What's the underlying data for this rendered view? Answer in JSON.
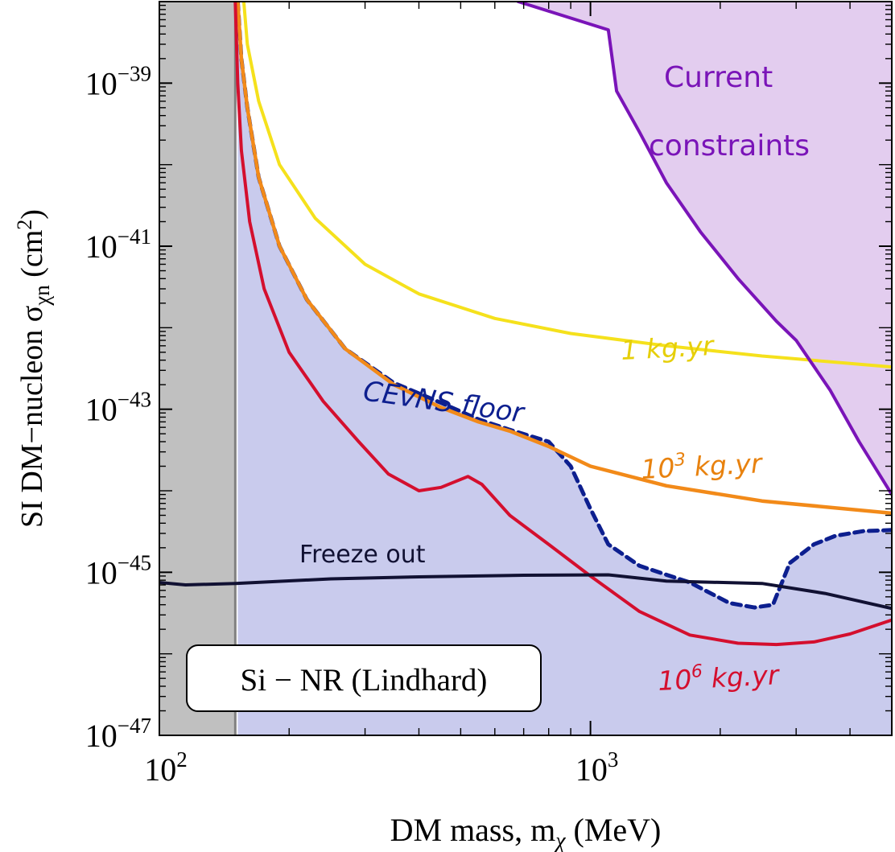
{
  "chart_data": {
    "type": "line",
    "title": "",
    "xlabel": "DM mass, m",
    "xlabel_sub": "χ",
    "xlabel_unit": "(MeV)",
    "ylabel": "SI DM−nucleon σ",
    "ylabel_sub": "χn",
    "ylabel_unit": "(cm",
    "ylabel_unit_sup": "2",
    "ylabel_unit_close": ")",
    "xscale": "log",
    "yscale": "log",
    "xlim": [
      100,
      5000
    ],
    "ylim": [
      1e-47,
      1e-38
    ],
    "x_ticks": [
      {
        "base": "10",
        "exp": "2",
        "value": 100
      },
      {
        "base": "10",
        "exp": "3",
        "value": 1000
      }
    ],
    "y_ticks": [
      {
        "base": "10",
        "exp": "−39",
        "value": 1e-39
      },
      {
        "base": "10",
        "exp": "−41",
        "value": 1e-41
      },
      {
        "base": "10",
        "exp": "−43",
        "value": 1e-43
      },
      {
        "base": "10",
        "exp": "−45",
        "value": 1e-45
      },
      {
        "base": "10",
        "exp": "−47",
        "value": 1e-47
      }
    ],
    "panel_label": "Si − NR (Lindhard)",
    "excluded_region": {
      "x_max": 150,
      "color": "#c0c0c0"
    },
    "series": [
      {
        "name": "Current constraints",
        "label_lines": [
          "Current",
          "constraints"
        ],
        "style": "filled-boundary",
        "color": "#7a14b8",
        "fill": "#e3cdef",
        "points": [
          [
            680,
            1e-38
          ],
          [
            1100,
            4.5e-39
          ],
          [
            1150,
            8e-40
          ],
          [
            1300,
            2.5e-40
          ],
          [
            1500,
            6e-41
          ],
          [
            1800,
            1.5e-41
          ],
          [
            2200,
            4e-42
          ],
          [
            2700,
            1.2e-42
          ],
          [
            3000,
            7e-43
          ],
          [
            3600,
            1.7e-43
          ],
          [
            4200,
            4e-44
          ],
          [
            5000,
            9e-45
          ]
        ]
      },
      {
        "name": "1 kg.yr",
        "style": "line",
        "color": "#f5e11c",
        "points": [
          [
            157,
            1e-38
          ],
          [
            160,
            3e-39
          ],
          [
            170,
            6e-40
          ],
          [
            190,
            1e-40
          ],
          [
            230,
            2.2e-41
          ],
          [
            300,
            6e-42
          ],
          [
            400,
            2.6e-42
          ],
          [
            600,
            1.3e-42
          ],
          [
            900,
            8.5e-43
          ],
          [
            1500,
            6e-43
          ],
          [
            2500,
            4.5e-43
          ],
          [
            5000,
            3.3e-43
          ]
        ]
      },
      {
        "name": "10³ kg.yr",
        "label_base": "10",
        "label_exp": "3",
        "label_rest": " kg.yr",
        "style": "line",
        "color": "#f28a19",
        "points": [
          [
            152,
            1e-38
          ],
          [
            155,
            2e-39
          ],
          [
            160,
            5e-40
          ],
          [
            170,
            7e-41
          ],
          [
            190,
            1e-41
          ],
          [
            220,
            2.2e-42
          ],
          [
            270,
            5.5e-43
          ],
          [
            350,
            2e-43
          ],
          [
            450,
            1.05e-43
          ],
          [
            550,
            7e-44
          ],
          [
            650,
            5.4e-44
          ],
          [
            800,
            3.5e-44
          ],
          [
            1000,
            2e-44
          ],
          [
            1500,
            1.15e-44
          ],
          [
            2500,
            7.5e-45
          ],
          [
            5000,
            5.3e-45
          ]
        ]
      },
      {
        "name": "CEvNS floor",
        "style": "dashed-filled",
        "color": "#0d1f8f",
        "fill": "#c9cbed",
        "points": [
          [
            152,
            1e-38
          ],
          [
            155,
            2e-39
          ],
          [
            160,
            5e-40
          ],
          [
            170,
            7e-41
          ],
          [
            190,
            1e-41
          ],
          [
            220,
            2.2e-42
          ],
          [
            270,
            5.5e-43
          ],
          [
            350,
            2.1e-43
          ],
          [
            450,
            1.2e-43
          ],
          [
            550,
            7.5e-44
          ],
          [
            650,
            5.6e-44
          ],
          [
            800,
            4e-44
          ],
          [
            900,
            2e-44
          ],
          [
            1000,
            6e-45
          ],
          [
            1100,
            2.2e-45
          ],
          [
            1300,
            1.2e-45
          ],
          [
            1700,
            7.5e-46
          ],
          [
            2100,
            4.2e-46
          ],
          [
            2400,
            3.7e-46
          ],
          [
            2650,
            4e-46
          ],
          [
            2900,
            1.3e-45
          ],
          [
            3300,
            2.2e-45
          ],
          [
            3700,
            2.8e-45
          ],
          [
            4300,
            3.2e-45
          ],
          [
            5000,
            3.3e-45
          ]
        ]
      },
      {
        "name": "10⁶ kg.yr",
        "label_base": "10",
        "label_exp": "6",
        "label_rest": " kg.yr",
        "style": "line",
        "color": "#d40f2e",
        "points": [
          [
            150,
            1e-38
          ],
          [
            152,
            1e-39
          ],
          [
            155,
            1.5e-40
          ],
          [
            162,
            2e-41
          ],
          [
            175,
            3e-42
          ],
          [
            200,
            5e-43
          ],
          [
            240,
            1.25e-43
          ],
          [
            290,
            4e-44
          ],
          [
            340,
            1.6e-44
          ],
          [
            400,
            1e-44
          ],
          [
            450,
            1.1e-44
          ],
          [
            520,
            1.5e-44
          ],
          [
            560,
            1.2e-44
          ],
          [
            650,
            5e-45
          ],
          [
            800,
            2.2e-45
          ],
          [
            1000,
            9e-46
          ],
          [
            1300,
            3.3e-46
          ],
          [
            1700,
            1.7e-46
          ],
          [
            2200,
            1.35e-46
          ],
          [
            2700,
            1.3e-46
          ],
          [
            3300,
            1.4e-46
          ],
          [
            4000,
            1.75e-46
          ],
          [
            5000,
            2.6e-46
          ]
        ]
      },
      {
        "name": "Freeze out",
        "style": "line",
        "color": "#111133",
        "points": [
          [
            100,
            7.5e-46
          ],
          [
            115,
            7e-46
          ],
          [
            150,
            7.3e-46
          ],
          [
            250,
            8.3e-46
          ],
          [
            400,
            8.8e-46
          ],
          [
            700,
            9.2e-46
          ],
          [
            1100,
            9.3e-46
          ],
          [
            1500,
            7.8e-46
          ],
          [
            2500,
            7.3e-46
          ],
          [
            3500,
            5.5e-46
          ],
          [
            5000,
            3.6e-46
          ]
        ]
      }
    ]
  }
}
